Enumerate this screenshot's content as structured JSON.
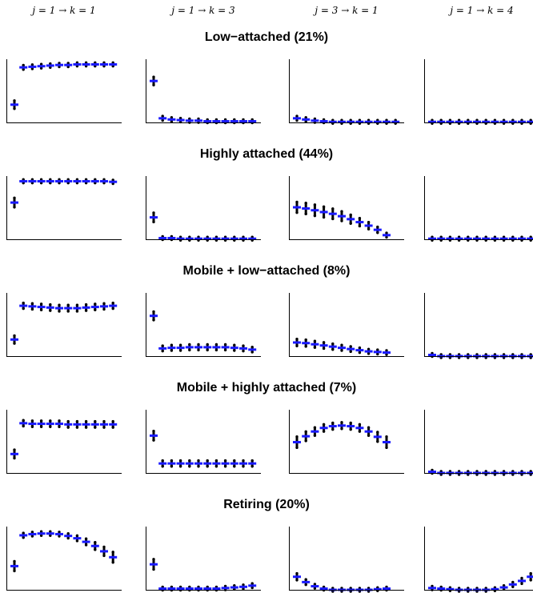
{
  "columns": [
    "j = 1 → k = 1",
    "j = 1 → k = 3",
    "j = 3 → k = 1",
    "j = 1 → k = 4"
  ],
  "rows": [
    "Low−attached (21%)",
    "Highly attached (44%)",
    "Mobile + low−attached (8%)",
    "Mobile + highly attached (7%)",
    "Retiring (20%)"
  ],
  "colors": {
    "estimate": "#1a1aff",
    "draws": "#000000",
    "axis": "#000000"
  },
  "chart_data": {
    "type": "scatter",
    "layout": "grid-5x4",
    "ylim": [
      0,
      1
    ],
    "x": [
      0,
      1,
      2,
      3,
      4,
      5,
      6,
      7,
      8,
      9,
      10,
      11,
      12
    ],
    "panels": [
      [
        [
          0.3,
          0.93,
          0.94,
          0.95,
          0.96,
          0.97,
          0.97,
          0.98,
          0.98,
          0.98,
          0.98,
          0.98
        ],
        [
          0.7,
          0.07,
          0.05,
          0.04,
          0.03,
          0.03,
          0.02,
          0.02,
          0.02,
          0.02,
          0.02,
          0.02
        ],
        [
          0.07,
          0.05,
          0.03,
          0.02,
          0.01,
          0.01,
          0.01,
          0.01,
          0.01,
          0.01,
          0.01,
          0.01
        ],
        [
          0.01,
          0.01,
          0.01,
          0.01,
          0.01,
          0.01,
          0.01,
          0.01,
          0.01,
          0.01,
          0.01,
          0.01
        ]
      ],
      [
        [
          0.62,
          0.98,
          0.98,
          0.98,
          0.98,
          0.98,
          0.98,
          0.98,
          0.98,
          0.98,
          0.98,
          0.97
        ],
        [
          0.37,
          0.02,
          0.02,
          0.01,
          0.01,
          0.01,
          0.01,
          0.01,
          0.01,
          0.01,
          0.01,
          0.01
        ],
        [
          0.54,
          0.52,
          0.49,
          0.46,
          0.43,
          0.39,
          0.34,
          0.29,
          0.23,
          0.16,
          0.07
        ],
        [
          0.01,
          0.01,
          0.01,
          0.01,
          0.01,
          0.01,
          0.01,
          0.01,
          0.01,
          0.01,
          0.01,
          0.01
        ]
      ],
      [
        [
          0.28,
          0.85,
          0.84,
          0.83,
          0.82,
          0.81,
          0.81,
          0.81,
          0.82,
          0.83,
          0.84,
          0.85
        ],
        [
          0.68,
          0.13,
          0.14,
          0.14,
          0.15,
          0.15,
          0.15,
          0.15,
          0.15,
          0.14,
          0.13,
          0.11
        ],
        [
          0.23,
          0.22,
          0.2,
          0.18,
          0.16,
          0.14,
          0.12,
          0.1,
          0.08,
          0.07,
          0.06
        ],
        [
          0.02,
          0.0,
          0.0,
          0.0,
          0.0,
          0.0,
          0.0,
          0.0,
          0.0,
          0.0,
          0.0,
          0.0
        ]
      ],
      [
        [
          0.32,
          0.84,
          0.83,
          0.83,
          0.83,
          0.83,
          0.82,
          0.82,
          0.82,
          0.82,
          0.82,
          0.82
        ],
        [
          0.63,
          0.16,
          0.16,
          0.16,
          0.16,
          0.16,
          0.16,
          0.16,
          0.16,
          0.16,
          0.16,
          0.16
        ],
        [
          0.52,
          0.62,
          0.7,
          0.76,
          0.79,
          0.8,
          0.79,
          0.76,
          0.7,
          0.61,
          0.52
        ],
        [
          0.02,
          0.0,
          0.0,
          0.0,
          0.0,
          0.0,
          0.0,
          0.0,
          0.0,
          0.0,
          0.0,
          0.0
        ]
      ],
      [
        [
          0.4,
          0.92,
          0.94,
          0.95,
          0.95,
          0.94,
          0.91,
          0.87,
          0.81,
          0.74,
          0.65,
          0.55
        ],
        [
          0.43,
          0.02,
          0.02,
          0.02,
          0.02,
          0.02,
          0.02,
          0.02,
          0.03,
          0.04,
          0.05,
          0.07
        ],
        [
          0.22,
          0.13,
          0.06,
          0.02,
          0.0,
          0.0,
          0.0,
          0.0,
          0.0,
          0.01,
          0.02
        ],
        [
          0.03,
          0.02,
          0.01,
          0.0,
          0.0,
          0.0,
          0.0,
          0.01,
          0.04,
          0.09,
          0.15,
          0.22
        ]
      ]
    ]
  }
}
